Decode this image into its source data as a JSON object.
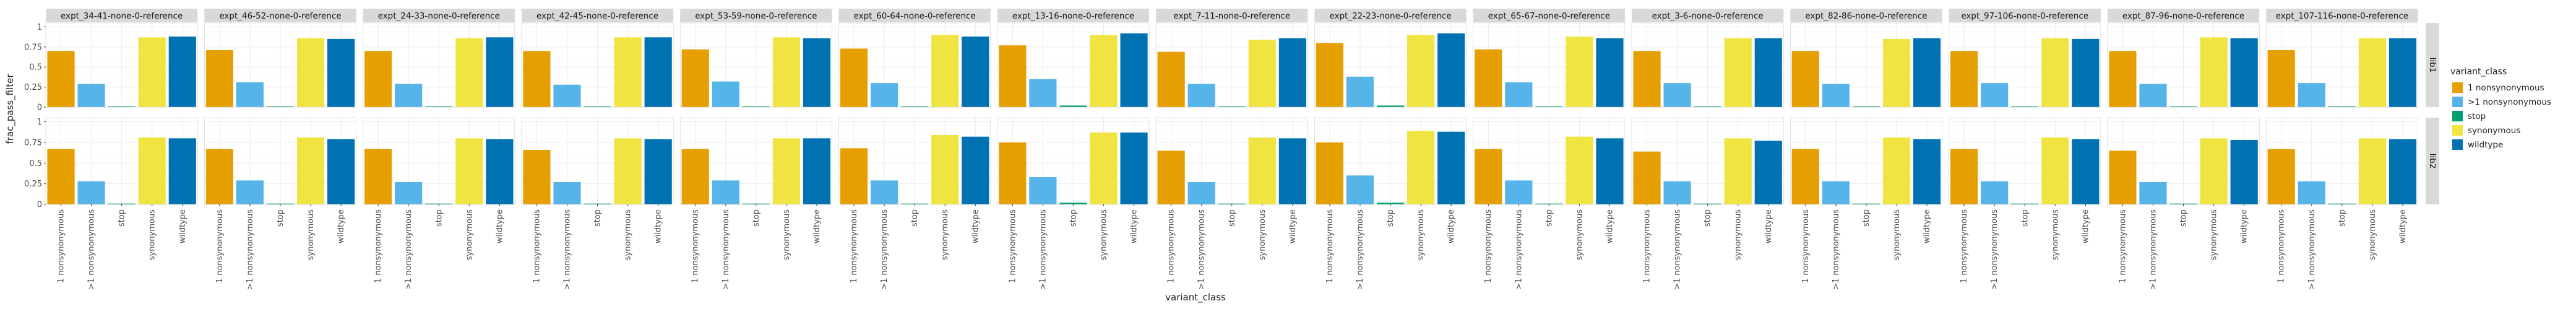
{
  "chart_data": {
    "type": "bar",
    "title": "",
    "xlabel": "variant_class",
    "ylabel": "frac_pass_filter",
    "ylim": [
      0,
      1.05
    ],
    "yticks": [
      0,
      0.25,
      0.5,
      0.75,
      1
    ],
    "ytick_labels": [
      "0",
      "0.25",
      "0.5",
      "0.75",
      "1"
    ],
    "grid": true,
    "legend_position": "right",
    "legend": {
      "title": "variant_class",
      "entries": [
        {
          "label": "1 nonsynonymous",
          "color": "#E69F00"
        },
        {
          "label": ">1 nonsynonymous",
          "color": "#56B4E9"
        },
        {
          "label": "stop",
          "color": "#009E73"
        },
        {
          "label": "synonymous",
          "color": "#F0E442"
        },
        {
          "label": "wildtype",
          "color": "#0072B2"
        }
      ]
    },
    "categories": [
      "1 nonsynonymous",
      ">1 nonsynonymous",
      "stop",
      "synonymous",
      "wildtype"
    ],
    "colors": [
      "#E69F00",
      "#56B4E9",
      "#009E73",
      "#F0E442",
      "#0072B2"
    ],
    "facet_columns": [
      "expt_34-41-none-0-reference",
      "expt_46-52-none-0-reference",
      "expt_24-33-none-0-reference",
      "expt_42-45-none-0-reference",
      "expt_53-59-none-0-reference",
      "expt_60-64-none-0-reference",
      "expt_13-16-none-0-reference",
      "expt_7-11-none-0-reference",
      "expt_22-23-none-0-reference",
      "expt_65-67-none-0-reference",
      "expt_3-6-none-0-reference",
      "expt_82-86-none-0-reference",
      "expt_97-106-none-0-reference",
      "expt_87-96-none-0-reference",
      "expt_107-116-none-0-reference"
    ],
    "facet_rows": [
      "lib1",
      "lib2"
    ],
    "values": {
      "lib1": [
        [
          0.7,
          0.29,
          0.01,
          0.87,
          0.88
        ],
        [
          0.71,
          0.31,
          0.01,
          0.86,
          0.85
        ],
        [
          0.7,
          0.29,
          0.01,
          0.86,
          0.87
        ],
        [
          0.7,
          0.28,
          0.01,
          0.87,
          0.87
        ],
        [
          0.72,
          0.32,
          0.01,
          0.87,
          0.86
        ],
        [
          0.73,
          0.3,
          0.01,
          0.9,
          0.88
        ],
        [
          0.77,
          0.35,
          0.02,
          0.9,
          0.92
        ],
        [
          0.69,
          0.29,
          0.01,
          0.84,
          0.86
        ],
        [
          0.8,
          0.38,
          0.02,
          0.9,
          0.92
        ],
        [
          0.72,
          0.31,
          0.01,
          0.88,
          0.86
        ],
        [
          0.7,
          0.3,
          0.01,
          0.86,
          0.86
        ],
        [
          0.7,
          0.29,
          0.01,
          0.85,
          0.86
        ],
        [
          0.7,
          0.3,
          0.01,
          0.86,
          0.85
        ],
        [
          0.7,
          0.29,
          0.01,
          0.87,
          0.86
        ],
        [
          0.71,
          0.3,
          0.01,
          0.86,
          0.86
        ]
      ],
      "lib2": [
        [
          0.67,
          0.28,
          0.01,
          0.81,
          0.8
        ],
        [
          0.67,
          0.29,
          0.01,
          0.81,
          0.79
        ],
        [
          0.67,
          0.27,
          0.01,
          0.8,
          0.79
        ],
        [
          0.66,
          0.27,
          0.01,
          0.8,
          0.79
        ],
        [
          0.67,
          0.29,
          0.01,
          0.8,
          0.8
        ],
        [
          0.68,
          0.29,
          0.01,
          0.84,
          0.82
        ],
        [
          0.75,
          0.33,
          0.02,
          0.87,
          0.87
        ],
        [
          0.65,
          0.27,
          0.01,
          0.81,
          0.8
        ],
        [
          0.75,
          0.35,
          0.02,
          0.89,
          0.88
        ],
        [
          0.67,
          0.29,
          0.01,
          0.82,
          0.8
        ],
        [
          0.64,
          0.28,
          0.01,
          0.8,
          0.77
        ],
        [
          0.67,
          0.28,
          0.01,
          0.81,
          0.79
        ],
        [
          0.67,
          0.28,
          0.01,
          0.81,
          0.79
        ],
        [
          0.65,
          0.27,
          0.01,
          0.8,
          0.78
        ],
        [
          0.67,
          0.28,
          0.01,
          0.8,
          0.79
        ]
      ]
    }
  }
}
